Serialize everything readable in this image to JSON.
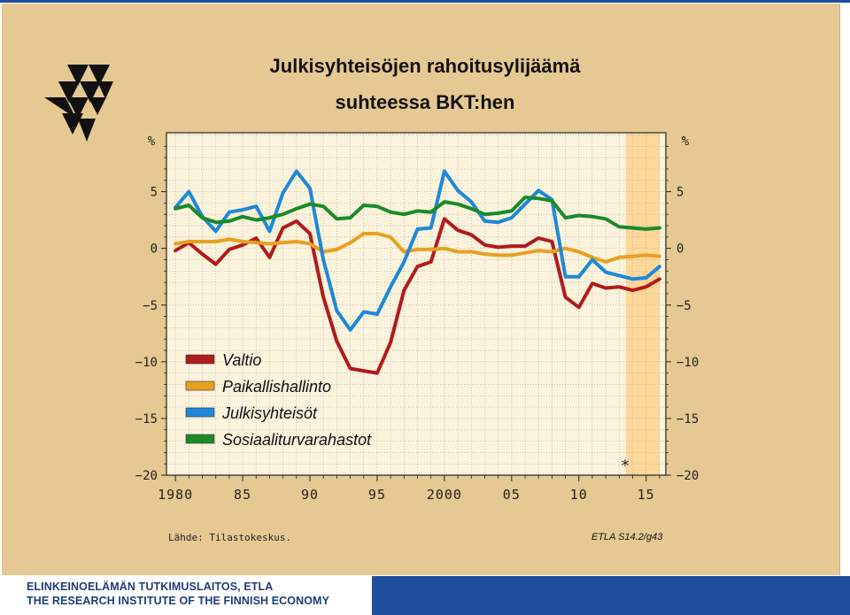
{
  "chart_data": {
    "type": "line",
    "title": "Julkisyhteisöjen rahoitusylijäämä",
    "subtitle": "suhteessa BKT:hen",
    "ylabel": "%",
    "ylim": [
      -20,
      10
    ],
    "y_ticks": [
      "5",
      "0",
      "−5",
      "−10",
      "−15",
      "−20"
    ],
    "y_tick_values": [
      5,
      0,
      -5,
      -10,
      -15,
      -20
    ],
    "x_ticks": [
      "1980",
      "85",
      "90",
      "95",
      "2000",
      "05",
      "10",
      "15"
    ],
    "x_tick_values": [
      1980,
      1985,
      1990,
      1995,
      2000,
      2005,
      2010,
      2015
    ],
    "xlim": [
      1979.2,
      2016.6
    ],
    "forecast_start": 2013.5,
    "forecast_marker": "*",
    "grid": true,
    "legend_position": "bottom-left",
    "x": [
      1980,
      1981,
      1982,
      1983,
      1984,
      1985,
      1986,
      1987,
      1988,
      1989,
      1990,
      1991,
      1992,
      1993,
      1994,
      1995,
      1996,
      1997,
      1998,
      1999,
      2000,
      2001,
      2002,
      2003,
      2004,
      2005,
      2006,
      2007,
      2008,
      2009,
      2010,
      2011,
      2012,
      2013,
      2014,
      2015,
      2016
    ],
    "series": [
      {
        "name": "Valtio",
        "color": "#b01b1b",
        "values": [
          -0.2,
          0.5,
          -0.5,
          -1.4,
          -0.1,
          0.3,
          0.9,
          -0.8,
          1.8,
          2.4,
          1.3,
          -4.3,
          -8.2,
          -10.6,
          -10.8,
          -11.0,
          -8.3,
          -3.7,
          -1.6,
          -1.2,
          2.6,
          1.6,
          1.2,
          0.3,
          0.1,
          0.2,
          0.2,
          0.9,
          0.6,
          -4.3,
          -5.2,
          -3.1,
          -3.5,
          -3.4,
          -3.7,
          -3.4,
          -2.7
        ]
      },
      {
        "name": "Paikallishallinto",
        "color": "#e8a020",
        "values": [
          0.4,
          0.6,
          0.6,
          0.6,
          0.8,
          0.6,
          0.5,
          0.4,
          0.5,
          0.6,
          0.4,
          -0.3,
          -0.1,
          0.5,
          1.3,
          1.3,
          1.0,
          -0.3,
          -0.1,
          -0.1,
          0.0,
          -0.3,
          -0.3,
          -0.5,
          -0.6,
          -0.6,
          -0.4,
          -0.2,
          -0.3,
          0.0,
          -0.3,
          -0.8,
          -1.2,
          -0.8,
          -0.7,
          -0.6,
          -0.7
        ]
      },
      {
        "name": "Julkisyhteisöt",
        "color": "#1e88d8",
        "values": [
          3.6,
          5.0,
          2.8,
          1.5,
          3.2,
          3.4,
          3.7,
          1.5,
          4.9,
          6.8,
          5.3,
          -1.0,
          -5.5,
          -7.2,
          -5.6,
          -5.8,
          -3.4,
          -1.2,
          1.7,
          1.8,
          6.8,
          5.1,
          4.1,
          2.4,
          2.3,
          2.7,
          3.9,
          5.1,
          4.3,
          -2.5,
          -2.5,
          -1.0,
          -2.1,
          -2.4,
          -2.7,
          -2.6,
          -1.6
        ]
      },
      {
        "name": "Sosiaaliturvarahastot",
        "color": "#1a8a2a",
        "values": [
          3.5,
          3.8,
          2.7,
          2.3,
          2.4,
          2.8,
          2.5,
          2.7,
          3.0,
          3.5,
          3.9,
          3.7,
          2.6,
          2.7,
          3.8,
          3.7,
          3.2,
          3.0,
          3.3,
          3.2,
          4.1,
          3.9,
          3.5,
          3.0,
          3.1,
          3.3,
          4.5,
          4.4,
          4.2,
          2.7,
          2.9,
          2.8,
          2.6,
          1.9,
          1.8,
          1.7,
          1.8
        ]
      }
    ]
  },
  "source_text": "Lähde:  Tilastokeskus.",
  "figure_code": "ETLA S14.2/g43",
  "footer": {
    "line1": "ELINKEINOELÄMÄN TUTKIMUSLAITOS, ETLA",
    "line2": "THE RESEARCH INSTITUTE OF THE FINNISH ECONOMY"
  },
  "logo": "etla-triangles-icon",
  "colors": {
    "slide_background": "#e6c892",
    "plot_background": "#fbf3dc",
    "forecast_band": "#ffd79a",
    "footer_blue": "#1f4e9c"
  }
}
